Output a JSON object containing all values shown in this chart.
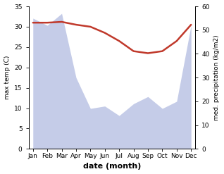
{
  "months": [
    "Jan",
    "Feb",
    "Mar",
    "Apr",
    "May",
    "Jun",
    "Jul",
    "Aug",
    "Sep",
    "Oct",
    "Nov",
    "Dec"
  ],
  "temperature": [
    31.0,
    31.0,
    31.2,
    30.5,
    30.0,
    28.5,
    26.5,
    24.0,
    23.5,
    24.0,
    26.5,
    30.5
  ],
  "precipitation": [
    55,
    52,
    57,
    30,
    17,
    18,
    14,
    19,
    22,
    17,
    20,
    52
  ],
  "temp_color": "#c0392b",
  "precip_fill_color": "#c5cce8",
  "xlabel": "date (month)",
  "ylabel_left": "max temp (C)",
  "ylabel_right": "med. precipitation (kg/m2)",
  "ylim_left": [
    0,
    35
  ],
  "ylim_right": [
    0,
    60
  ],
  "yticks_left": [
    0,
    5,
    10,
    15,
    20,
    25,
    30,
    35
  ],
  "yticks_right": [
    0,
    10,
    20,
    30,
    40,
    50,
    60
  ],
  "bg_color": "#ffffff",
  "temp_linewidth": 1.8
}
